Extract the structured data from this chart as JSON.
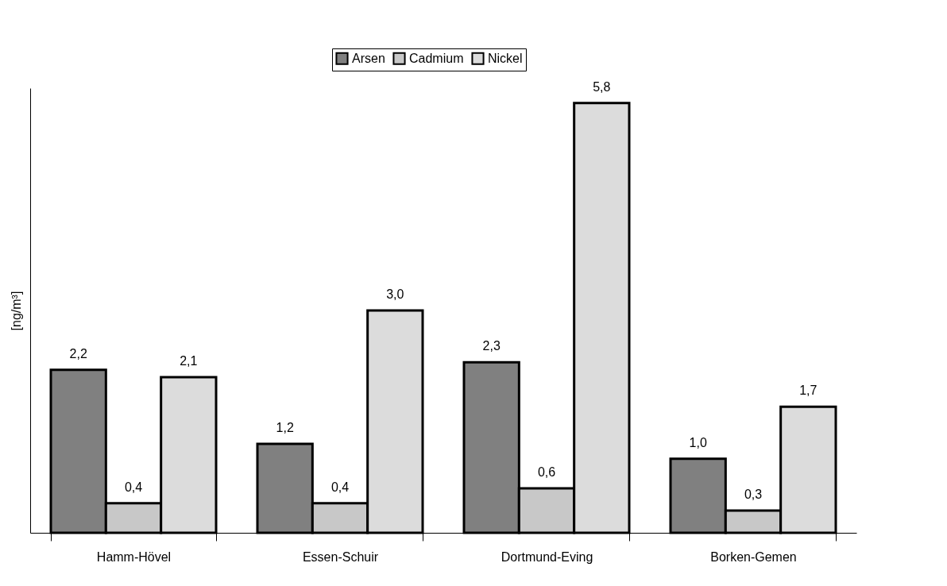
{
  "chart_data": {
    "type": "bar",
    "ylabel": "[ng/m³]",
    "categories": [
      "Hamm-Hövel",
      "Essen-Schuir",
      "Dortmund-Eving",
      "Borken-Gemen"
    ],
    "series": [
      {
        "name": "Arsen",
        "color": "#808080",
        "values": [
          2.2,
          1.2,
          2.3,
          1.0
        ],
        "value_labels": [
          "2,2",
          "1,2",
          "2,3",
          "1,0"
        ]
      },
      {
        "name": "Cadmium",
        "color": "#c8c8c8",
        "values": [
          0.4,
          0.4,
          0.6,
          0.3
        ],
        "value_labels": [
          "0,4",
          "0,4",
          "0,6",
          "0,3"
        ]
      },
      {
        "name": "Nickel",
        "color": "#dcdcdc",
        "values": [
          2.1,
          3.0,
          5.8,
          1.7
        ],
        "value_labels": [
          "2,1",
          "3,0",
          "5,8",
          "1,7"
        ]
      }
    ],
    "legend": "top",
    "grid": false
  }
}
